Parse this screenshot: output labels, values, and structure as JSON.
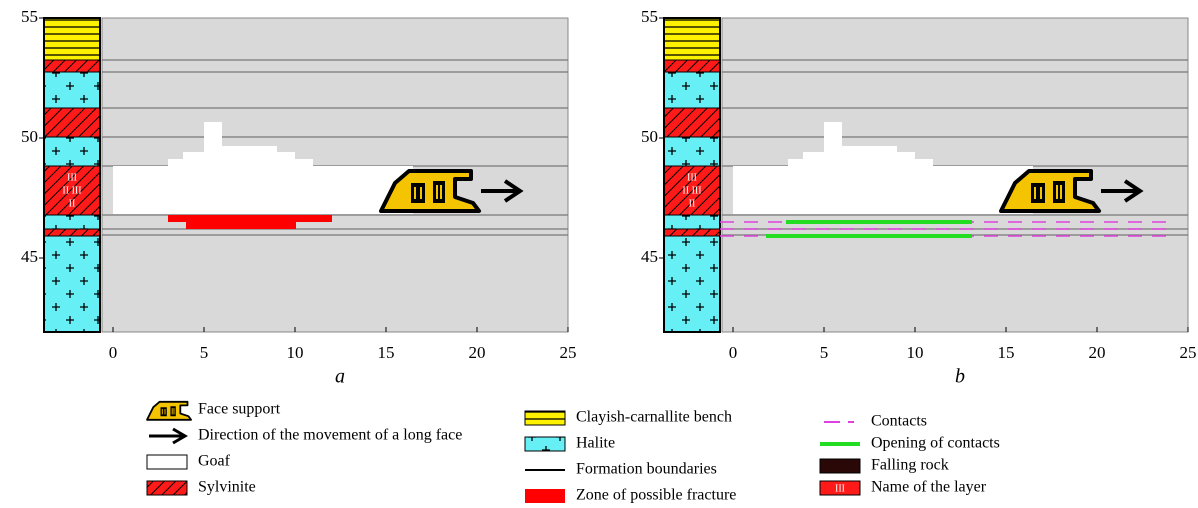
{
  "panels": [
    {
      "label": "a"
    },
    {
      "label": "b"
    }
  ],
  "axes": {
    "x_ticks": [
      0,
      5,
      10,
      15,
      20,
      25
    ],
    "y_ticks": [
      45,
      50,
      55
    ]
  },
  "layer_labels": [
    "III",
    "II III",
    "II"
  ],
  "legend": [
    "Face support",
    "Direction of the movement of a long face",
    "Goaf",
    "Sylvinite",
    "Clayish-carnallite bench",
    "Halite",
    "Formation boundaries",
    "Zone of possible fracture",
    "Contacts",
    "Opening of contacts",
    "Falling rock",
    "Name of the layer"
  ]
}
